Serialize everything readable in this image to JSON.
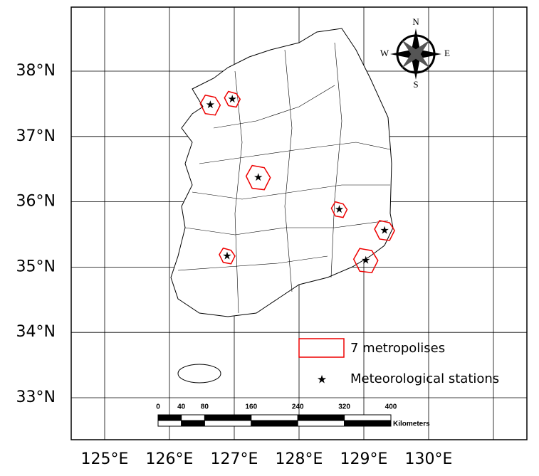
{
  "map": {
    "lat_ticks": [
      {
        "value": 38,
        "label": "38°N"
      },
      {
        "value": 37,
        "label": "37°N"
      },
      {
        "value": 36,
        "label": "36°N"
      },
      {
        "value": 35,
        "label": "35°N"
      },
      {
        "value": 34,
        "label": "34°N"
      },
      {
        "value": 33,
        "label": "33°N"
      }
    ],
    "lon_ticks": [
      {
        "value": 125,
        "label": "125°E"
      },
      {
        "value": 126,
        "label": "126°E"
      },
      {
        "value": 127,
        "label": "127°E"
      },
      {
        "value": 128,
        "label": "128°E"
      },
      {
        "value": 129,
        "label": "129°E"
      },
      {
        "value": 130,
        "label": "130°E"
      }
    ],
    "legend": {
      "metropolises": "7 metropolises",
      "stations": "Meteorological stations"
    },
    "compass": {
      "n": "N",
      "e": "E",
      "s": "S",
      "w": "W"
    },
    "scale_bar": {
      "ticks": [
        0,
        40,
        80,
        160,
        240,
        320,
        400
      ],
      "unit": "Kilometers"
    },
    "stations": [
      {
        "lon": 126.97,
        "lat": 37.57
      },
      {
        "lon": 126.63,
        "lat": 37.48
      },
      {
        "lon": 127.37,
        "lat": 36.37
      },
      {
        "lon": 128.62,
        "lat": 35.88
      },
      {
        "lon": 129.32,
        "lat": 35.56
      },
      {
        "lon": 129.03,
        "lat": 35.1
      },
      {
        "lon": 126.89,
        "lat": 35.17
      }
    ]
  }
}
